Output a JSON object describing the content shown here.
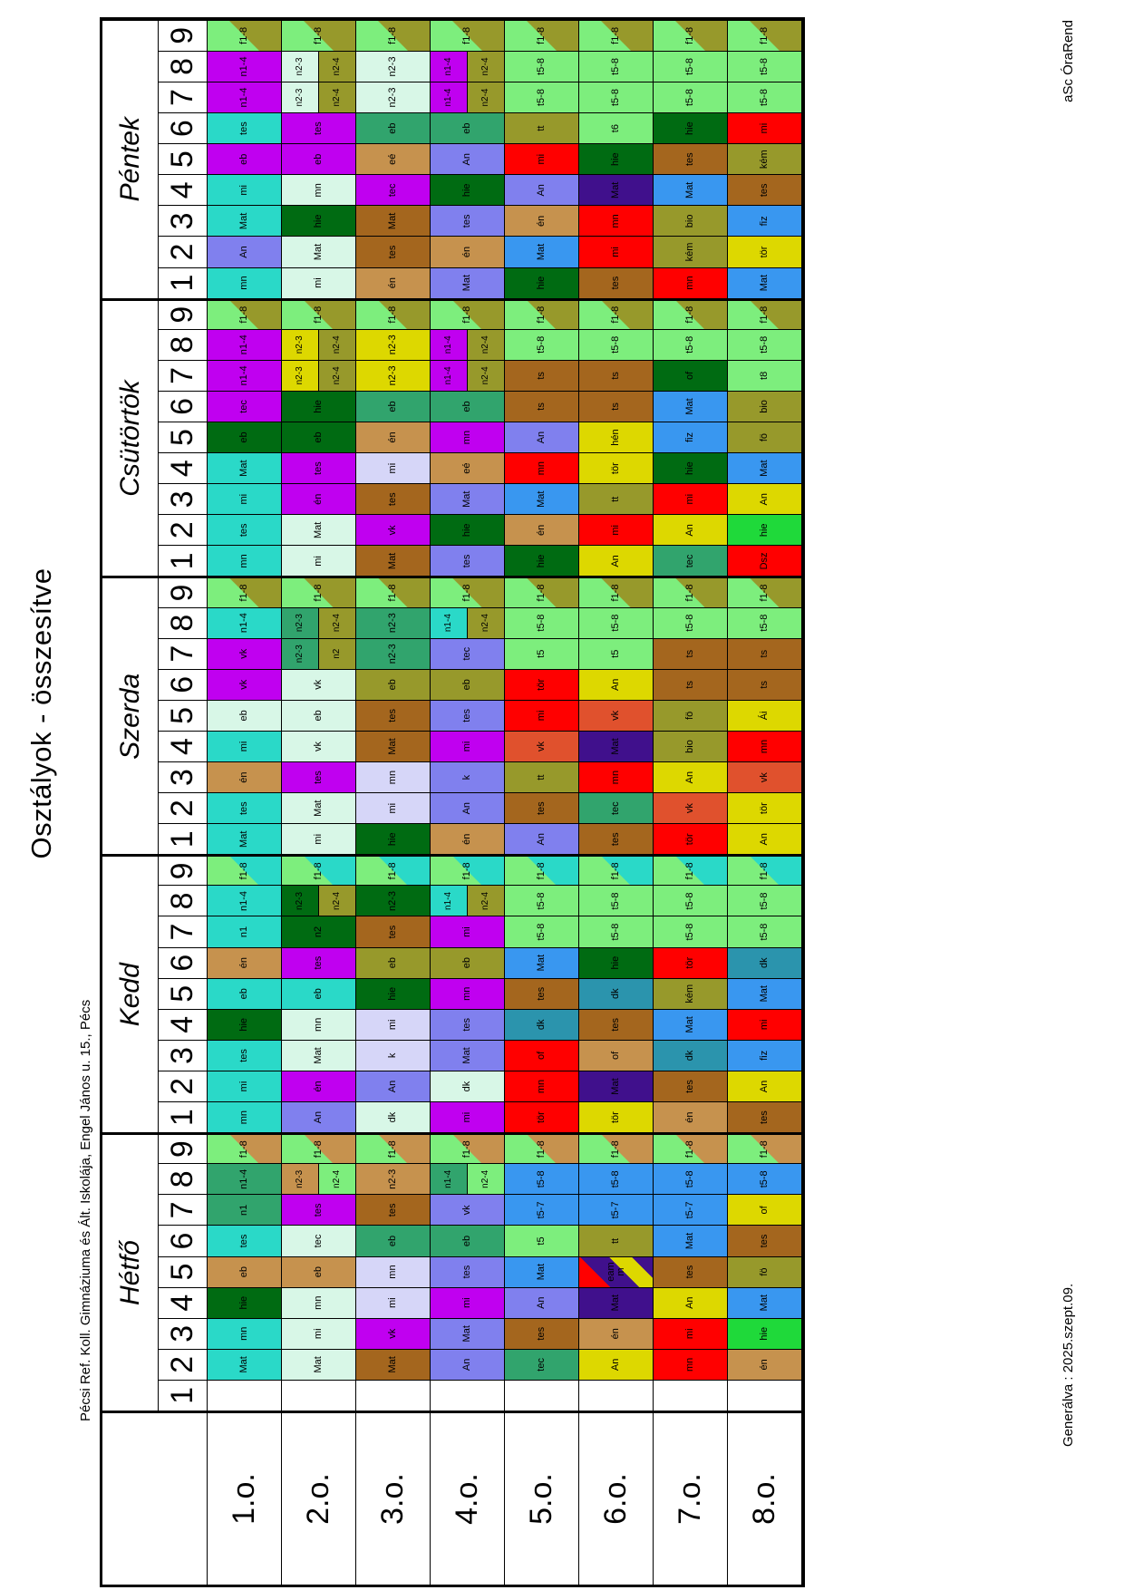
{
  "page": {
    "title": "Osztályok - összesítve",
    "school": "Pécsi Ref. Koll. Gimnáziuma és Ált. Iskolája, Engel János u. 15., Pécs",
    "brand": "aSc ÓraRend",
    "generated": "Generálva : 2025.szept.09."
  },
  "days": [
    "Hétfő",
    "Kedd",
    "Szerda",
    "Csütörtök",
    "Péntek"
  ],
  "periods": [
    "1",
    "2",
    "3",
    "4",
    "5",
    "6",
    "7",
    "8",
    "9"
  ],
  "classes": [
    "1.o.",
    "2.o.",
    "3.o.",
    "4.o.",
    "5.o.",
    "6.o.",
    "7.o.",
    "8.o."
  ],
  "palette": {
    "tq": "#2ad9c8",
    "pm": "#d8f7e7",
    "lv": "#d6d6f8",
    "mg": "#c000f0",
    "pw": "#8080ee",
    "dg": "#006b12",
    "sg": "#31a46d",
    "lg": "#7dee7d",
    "ol": "#97992b",
    "tan": "#c6924e",
    "br": "#a4661e",
    "rd": "#ff0000",
    "yl": "#ddd800",
    "bl": "#3997f0",
    "in": "#40108c",
    "tb": "#2b94ad",
    "or": "#e0512d",
    "gr": "#1fd93a"
  },
  "grid": {
    "1.o.": {
      "Hétfő": [
        null,
        "Mat:tq",
        "mn:tq",
        "hie:dg",
        "eb:tan",
        "tes:tq",
        "n1:sg",
        "n1-4:sg",
        "D:f1-8:lg:tan"
      ],
      "Kedd": [
        "mn:tq",
        "mi:tq",
        "tes:tq",
        "hie:dg",
        "eb:tq",
        "én:tan",
        "n1:tq",
        "n1-4:tq",
        "D:f1-8:lg:tq"
      ],
      "Szerda": [
        "Mat:tq",
        "tes:tq",
        "én:tan",
        "mi:tq",
        "eb:pm",
        "vk:mg",
        "vk:mg",
        "n1-4:tq",
        "D:f1-8:lg:ol"
      ],
      "Csütörtök": [
        "mn:tq",
        "tes:tq",
        "mi:tq",
        "Mat:tq",
        "eb:dg",
        "tec:mg",
        "n1-4:mg",
        "n1-4:mg",
        "D:f1-8:lg:ol"
      ],
      "Péntek": [
        "mn:tq",
        "An:pw",
        "Mat:tq",
        "mi:tq",
        "eb:mg",
        "tes:tq",
        "n1-4:mg",
        "n1-4:mg",
        "D:f1-8:lg:ol"
      ]
    },
    "2.o.": {
      "Hétfő": [
        null,
        "Mat:pm",
        "mi:pm",
        "mn:pm",
        "eb:tan",
        "tec:pm",
        "tes:mg",
        "S:n2-3:tan:n2-4:lg",
        "D:f1-8:lg:tan"
      ],
      "Kedd": [
        "An:pw",
        "én:mg",
        "Mat:pm",
        "mn:pm",
        "eb:tq",
        "tes:mg",
        "n2:dg",
        "S:n2-3:dg:n2-4:ol",
        "D:f1-8:lg:tq"
      ],
      "Szerda": [
        "mi:pm",
        "Mat:pm",
        "tes:mg",
        "vk:pm",
        "eb:pm",
        "vk:pm",
        "S:n2-3:sg:n2:ol",
        "S:n2-3:sg:n2-4:ol",
        "D:f1-8:lg:ol"
      ],
      "Csütörtök": [
        "mi:pm",
        "Mat:pm",
        "én:mg",
        "tes:mg",
        "eb:dg",
        "hie:dg",
        "S:n2-3:yl:n2-4:ol",
        "S:n2-3:yl:n2-4:ol",
        "D:f1-8:lg:ol"
      ],
      "Péntek": [
        "mi:pm",
        "Mat:pm",
        "hie:dg",
        "mn:pm",
        "eb:mg",
        "tes:mg",
        "S:n2-3:pm:n2-4:ol",
        "S:n2-3:pm:n2-4:ol",
        "D:f1-8:lg:ol"
      ]
    },
    "3.o.": {
      "Hétfő": [
        null,
        "Mat:br",
        "vk:mg",
        "mi:lv",
        "mn:lv",
        "eb:sg",
        "tes:br",
        "n2-3:tan",
        "D:f1-8:lg:tan"
      ],
      "Kedd": [
        "dk:pm",
        "An:pw",
        "k:lv",
        "mi:lv",
        "hie:dg",
        "eb:ol",
        "tes:br",
        "n2-3:dg",
        "D:f1-8:lg:tq"
      ],
      "Szerda": [
        "hie:dg",
        "mi:lv",
        "mn:lv",
        "Mat:br",
        "tes:br",
        "eb:ol",
        "n2-3:sg",
        "n2-3:sg",
        "D:f1-8:lg:ol"
      ],
      "Csütörtök": [
        "Mat:br",
        "vk:mg",
        "tes:br",
        "mi:lv",
        "én:tan",
        "eb:sg",
        "n2-3:yl",
        "n2-3:yl",
        "D:f1-8:lg:ol"
      ],
      "Péntek": [
        "én:tan",
        "tes:br",
        "Mat:br",
        "tec:mg",
        "eé:tan",
        "eb:sg",
        "n2-3:pm",
        "n2-3:pm",
        "D:f1-8:lg:ol"
      ]
    },
    "4.o.": {
      "Hétfő": [
        null,
        "An:pw",
        "Mat:pw",
        "mi:mg",
        "tes:pw",
        "eb:sg",
        "vk:pw",
        "S:n1-4:sg:n2-4:lg",
        "D:f1-8:lg:tan"
      ],
      "Kedd": [
        "mi:mg",
        "dk:pm",
        "Mat:pw",
        "tes:pw",
        "mn:mg",
        "eb:ol",
        "mi:mg",
        "S:n1-4:tq:n2-4:ol",
        "D:f1-8:lg:tq"
      ],
      "Szerda": [
        "én:tan",
        "An:pw",
        "k:pw",
        "mi:mg",
        "tes:pw",
        "eb:ol",
        "tec:pw",
        "S:n1-4:tq:n2-4:ol",
        "D:f1-8:lg:ol"
      ],
      "Csütörtök": [
        "tes:pw",
        "hie:dg",
        "Mat:pw",
        "eé:tan",
        "mn:mg",
        "eb:sg",
        "S:n1-4:mg:n2-4:ol",
        "S:n1-4:mg:n2-4:ol",
        "D:f1-8:lg:ol"
      ],
      "Péntek": [
        "Mat:pw",
        "én:tan",
        "tes:pw",
        "hie:dg",
        "An:pw",
        "eb:sg",
        "S:n1-4:mg:n2-4:ol",
        "S:n1-4:mg:n2-4:ol",
        "D:f1-8:lg:ol"
      ]
    },
    "5.o.": {
      "Hétfő": [
        null,
        "tec:sg",
        "tes:br",
        "An:pw",
        "Mat:bl",
        "t5:lg",
        "t5-7:bl",
        "t5-8:bl",
        "D:f1-8:lg:tan"
      ],
      "Kedd": [
        "tör:rd",
        "mn:rd",
        "of:rd",
        "dk:tb",
        "tes:br",
        "Mat:bl",
        "t5-8:lg",
        "t5-8:lg",
        "D:f1-8:lg:tq"
      ],
      "Szerda": [
        "An:pw",
        "tes:br",
        "tt:ol",
        "vk:or",
        "mi:rd",
        "tör:rd",
        "t5:lg",
        "t5-8:lg",
        "D:f1-8:lg:ol"
      ],
      "Csütörtök": [
        "hie:dg",
        "én:tan",
        "Mat:bl",
        "mn:rd",
        "An:pw",
        "ts:br",
        "ts:br",
        "t5-8:lg",
        "D:f1-8:lg:ol"
      ],
      "Péntek": [
        "hie:dg",
        "Mat:bl",
        "én:tan",
        "An:pw",
        "mi:rd",
        "tt:ol",
        "t5-8:lg",
        "t5-8:lg",
        "D:f1-8:lg:ol"
      ]
    },
    "6.o.": {
      "Hétfő": [
        null,
        "An:yl",
        "én:tan",
        "Mat:in",
        "X:eam|m:rd:in:yl:in",
        "tt:ol",
        "t5-7:bl",
        "t5-8:bl",
        "D:f1-8:lg:tan"
      ],
      "Kedd": [
        "tör:yl",
        "Mat:in",
        "of:tan",
        "tes:br",
        "dk:tb",
        "hie:dg",
        "t5-8:lg",
        "t5-8:lg",
        "D:f1-8:lg:tq"
      ],
      "Szerda": [
        "tes:br",
        "tec:sg",
        "mn:rd",
        "Mat:in",
        "vk:or",
        "An:yl",
        "t5:lg",
        "t5-8:lg",
        "D:f1-8:lg:ol"
      ],
      "Csütörtök": [
        "An:yl",
        "mi:rd",
        "tt:ol",
        "tör:yl",
        "hén:yl",
        "ts:br",
        "ts:br",
        "t5-8:lg",
        "D:f1-8:lg:ol"
      ],
      "Péntek": [
        "tes:br",
        "mi:rd",
        "mn:rd",
        "Mat:in",
        "hie:dg",
        "t6:lg",
        "t5-8:lg",
        "t5-8:lg",
        "D:f1-8:lg:ol"
      ]
    },
    "7.o.": {
      "Hétfő": [
        null,
        "mn:rd",
        "mi:rd",
        "An:yl",
        "tes:br",
        "Mat:bl",
        "t5-7:bl",
        "t5-8:bl",
        "D:f1-8:lg:tan"
      ],
      "Kedd": [
        "én:tan",
        "tes:br",
        "dk:tb",
        "Mat:bl",
        "kém:ol",
        "tör:rd",
        "t5-8:lg",
        "t5-8:lg",
        "D:f1-8:lg:tq"
      ],
      "Szerda": [
        "tör:rd",
        "vk:or",
        "An:yl",
        "bio:ol",
        "fö:ol",
        "ts:br",
        "ts:br",
        "t5-8:lg",
        "D:f1-8:lg:ol"
      ],
      "Csütörtök": [
        "tec:sg",
        "An:yl",
        "mi:rd",
        "hie:dg",
        "fiz:bl",
        "Mat:bl",
        "of:dg",
        "t5-8:lg",
        "D:f1-8:lg:ol"
      ],
      "Péntek": [
        "mn:rd",
        "kém:ol",
        "bio:ol",
        "Mat:bl",
        "tes:br",
        "hie:dg",
        "t5-8:lg",
        "t5-8:lg",
        "D:f1-8:lg:ol"
      ]
    },
    "8.o.": {
      "Hétfő": [
        null,
        "én:tan",
        "hie:gr",
        "Mat:bl",
        "fö:ol",
        "tes:br",
        "of:yl",
        "t5-8:bl",
        "D:f1-8:lg:tan"
      ],
      "Kedd": [
        "tes:br",
        "An:yl",
        "fiz:bl",
        "mi:rd",
        "Mat:bl",
        "dk:tb",
        "t5-8:lg",
        "t5-8:lg",
        "D:f1-8:lg:tq"
      ],
      "Szerda": [
        "An:yl",
        "tör:yl",
        "vk:or",
        "mn:rd",
        "Ái:yl",
        "ts:br",
        "ts:br",
        "t5-8:lg",
        "D:f1-8:lg:ol"
      ],
      "Csütörtök": [
        "Dsz:rd",
        "hie:gr",
        "An:yl",
        "Mat:bl",
        "fö:ol",
        "bio:ol",
        "t8:lg",
        "t5-8:lg",
        "D:f1-8:lg:ol"
      ],
      "Péntek": [
        "Mat:bl",
        "tör:yl",
        "fiz:bl",
        "tes:br",
        "kém:ol",
        "mi:rd",
        "t5-8:lg",
        "t5-8:lg",
        "D:f1-8:lg:ol"
      ]
    }
  }
}
